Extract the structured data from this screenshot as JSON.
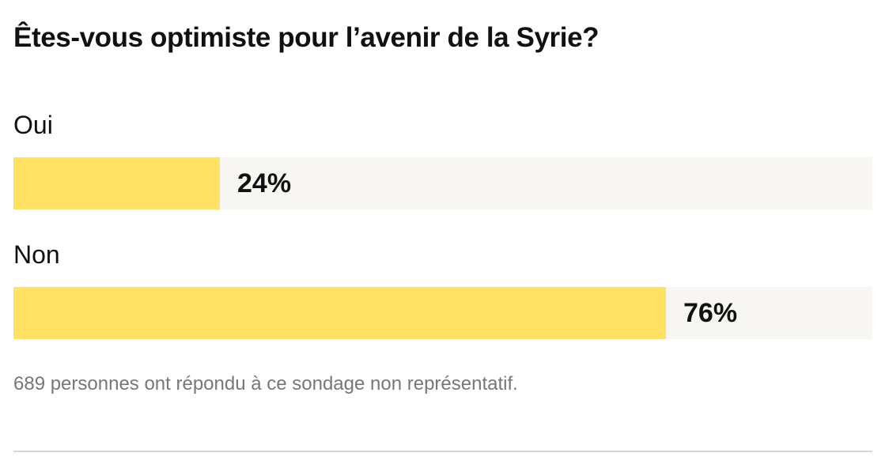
{
  "chart_data": {
    "type": "bar",
    "title": "Êtes-vous optimiste pour l’avenir de la Syrie?",
    "categories": [
      "Oui",
      "Non"
    ],
    "values": [
      24,
      76
    ],
    "value_labels": [
      "24%",
      "76%"
    ],
    "unit": "%",
    "ylim": [
      0,
      100
    ],
    "orientation": "horizontal",
    "grid": false,
    "footnote": "689 personnes ont répondu à ce sondage non représentatif."
  },
  "colors": {
    "fill": "#ffe263",
    "track": "#f7f6f2",
    "text": "#111111",
    "muted": "#777777",
    "divider": "#d6d6d6"
  }
}
